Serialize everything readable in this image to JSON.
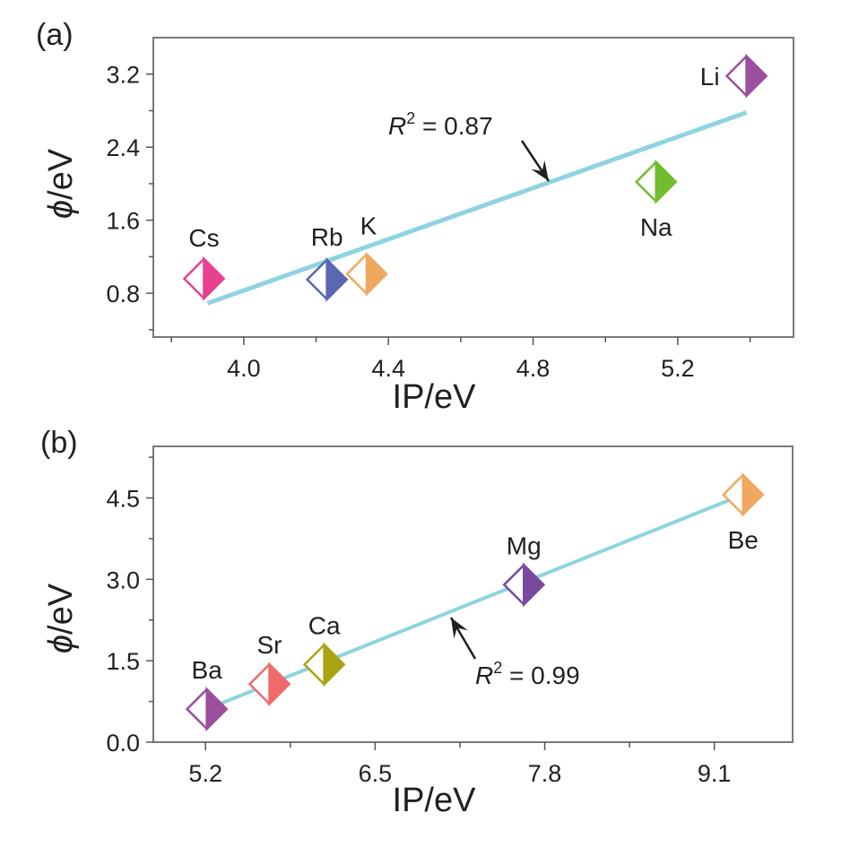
{
  "chart_data": [
    {
      "type": "scatter",
      "panel_label": "(a)",
      "title": "",
      "xlabel": "IP/eV",
      "ylabel_symbol": "ϕ",
      "ylabel_unit": "/eV",
      "xlim": [
        3.75,
        5.52
      ],
      "ylim": [
        0.32,
        3.6
      ],
      "xticks": [
        4.0,
        4.4,
        4.8,
        5.2
      ],
      "xtick_labels": [
        "4.0",
        "4.4",
        "4.8",
        "5.2"
      ],
      "xminor": [
        3.8,
        4.2,
        4.6,
        5.0,
        5.4
      ],
      "yticks": [
        0.8,
        1.6,
        2.4,
        3.2
      ],
      "ytick_labels": [
        "0.8",
        "1.6",
        "2.4",
        "3.2"
      ],
      "yminor": [
        0.4,
        1.2,
        2.0,
        2.8
      ],
      "grid": false,
      "fit_color": "#8fd3e0",
      "fit_line": {
        "x": [
          3.9,
          5.39
        ],
        "y": [
          0.69,
          2.78
        ]
      },
      "annotation": {
        "text_r": "R",
        "text_sup": "2",
        "text_rest": " = 0.87",
        "arrow": "points to fit line"
      },
      "points": [
        {
          "label": "Cs",
          "x": 3.89,
          "y": 0.96,
          "color": "#e8418f",
          "label_pos": "above"
        },
        {
          "label": "Rb",
          "x": 4.23,
          "y": 0.95,
          "color": "#5b67b0",
          "label_pos": "above"
        },
        {
          "label": "K",
          "x": 4.34,
          "y": 1.01,
          "color": "#f0a860",
          "label_pos": "above"
        },
        {
          "label": "Na",
          "x": 5.14,
          "y": 2.02,
          "color": "#72bd2e",
          "label_pos": "below"
        },
        {
          "label": "Li",
          "x": 5.39,
          "y": 3.18,
          "color": "#9c4f9c",
          "label_pos": "left"
        }
      ]
    },
    {
      "type": "scatter",
      "panel_label": "(b)",
      "title": "",
      "xlabel": "IP/eV",
      "ylabel_symbol": "ϕ",
      "ylabel_unit": "/eV",
      "xlim": [
        4.8,
        9.7
      ],
      "ylim": [
        0.0,
        5.45
      ],
      "xticks": [
        5.2,
        6.5,
        7.8,
        9.1
      ],
      "xtick_labels": [
        "5.2",
        "6.5",
        "7.8",
        "9.1"
      ],
      "xminor": [
        5.85,
        7.15,
        8.45
      ],
      "yticks": [
        0.0,
        1.5,
        3.0,
        4.5
      ],
      "ytick_labels": [
        "0.0",
        "1.5",
        "3.0",
        "4.5"
      ],
      "yminor": [
        0.75,
        2.25,
        3.75,
        5.25
      ],
      "grid": false,
      "fit_color": "#8fd3e0",
      "fit_line": {
        "x": [
          5.21,
          9.32
        ],
        "y": [
          0.61,
          4.56
        ]
      },
      "annotation": {
        "text_r": "R",
        "text_sup": "2",
        "text_rest": " = 0.99",
        "arrow": "points to fit line"
      },
      "points": [
        {
          "label": "Ba",
          "x": 5.21,
          "y": 0.61,
          "color": "#9c4f9c",
          "label_pos": "above"
        },
        {
          "label": "Sr",
          "x": 5.69,
          "y": 1.07,
          "color": "#ef6b6b",
          "label_pos": "above"
        },
        {
          "label": "Ca",
          "x": 6.11,
          "y": 1.43,
          "color": "#aaa314",
          "label_pos": "above"
        },
        {
          "label": "Mg",
          "x": 7.64,
          "y": 2.9,
          "color": "#7a4aa0",
          "label_pos": "above"
        },
        {
          "label": "Be",
          "x": 9.32,
          "y": 4.56,
          "color": "#f0a860",
          "label_pos": "below"
        }
      ]
    }
  ]
}
